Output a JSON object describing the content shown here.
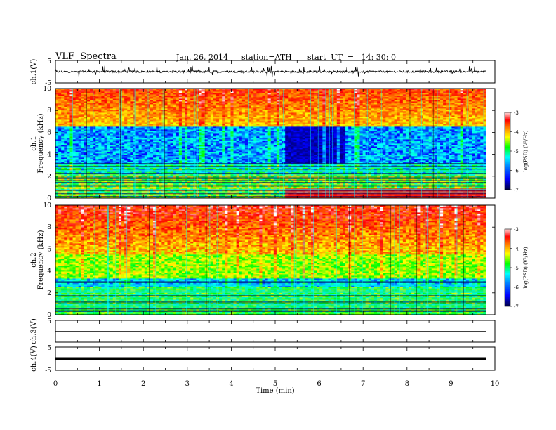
{
  "header": {
    "title": "VLF  Spectra",
    "date": "Jan. 26, 2014",
    "station": "station=ATH",
    "start": "start  UT  =   14: 30: 0"
  },
  "chart_data": {
    "type": "heatmap",
    "x_axis": {
      "label": "Time  (min)",
      "range": [
        0,
        10
      ],
      "ticks": [
        0,
        1,
        2,
        3,
        4,
        5,
        6,
        7,
        8,
        9,
        10
      ],
      "data_end": 9.8
    },
    "panels": [
      {
        "id": "ch1-waveform",
        "type": "line",
        "ylabel": "ch.1(V)",
        "ylim": [
          -5,
          5
        ],
        "yticks": [
          5,
          -5
        ],
        "baseline": 0.0,
        "description": "noisy waveform with spikes"
      },
      {
        "id": "ch1-spectrogram",
        "type": "heatmap",
        "ylabel_channel": "ch.1",
        "ylabel": "Frequency  (kHz)",
        "ylim": [
          0,
          10
        ],
        "yticks": [
          0,
          2,
          4,
          6,
          8,
          10
        ],
        "colorbar": {
          "label": "log(PSD) (V²/Hz)",
          "range": [
            -7,
            -3
          ],
          "ticks": [
            -3,
            -4,
            -5,
            -6,
            -7
          ]
        },
        "features": {
          "quiet_band_khz": [
            3.2,
            6.6
          ],
          "depletion_time_min": [
            5.2,
            6.6
          ]
        }
      },
      {
        "id": "ch2-spectrogram",
        "type": "heatmap",
        "ylabel_channel": "ch.2",
        "ylabel": "Frequency  (kHz)",
        "ylim": [
          0,
          10
        ],
        "yticks": [
          0,
          2,
          4,
          6,
          8,
          10
        ],
        "colorbar": {
          "label": "log(PSD) (V²/Hz)",
          "range": [
            -7,
            -3
          ],
          "ticks": [
            -3,
            -4,
            -5,
            -6,
            -7
          ]
        }
      },
      {
        "id": "ch3-waveform",
        "type": "line",
        "ylabel": "ch.3(V)",
        "ylim": [
          -5,
          5
        ],
        "yticks": [
          5
        ],
        "baseline": 0.0,
        "description": "flat line"
      },
      {
        "id": "ch4-waveform",
        "type": "line",
        "ylabel": "ch.4(V)",
        "ylim": [
          -5,
          5
        ],
        "yticks": [
          5,
          -5
        ],
        "baseline": 0.0,
        "description": "thick flat band"
      }
    ],
    "colormap": [
      "#000040",
      "#0000ff",
      "#00ffff",
      "#00ff00",
      "#ffff00",
      "#ff8000",
      "#ff0000",
      "#ffffff"
    ]
  }
}
